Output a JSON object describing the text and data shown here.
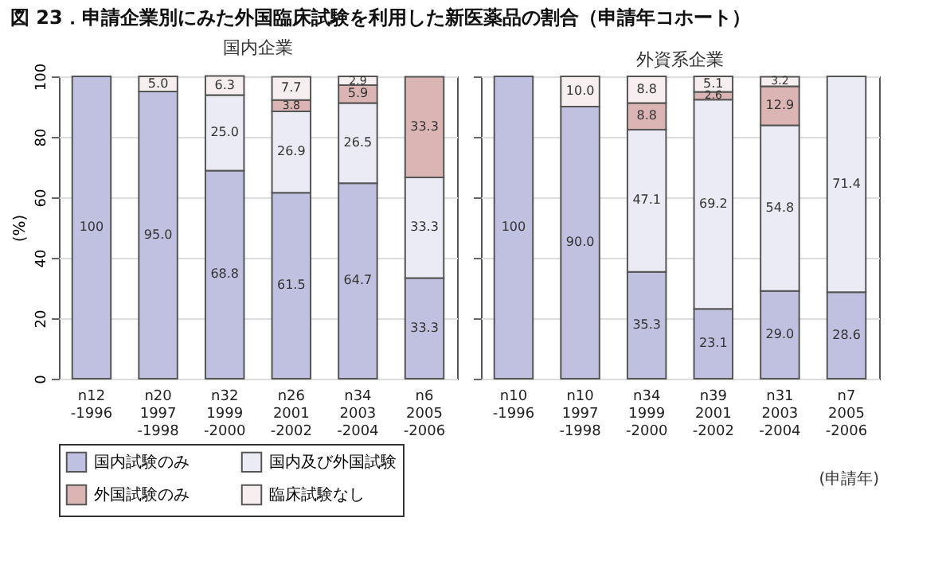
{
  "chart_data": [
    {
      "type": "bar",
      "stacked": true,
      "title": "図 23．申請企業別にみた外国臨床試験を利用した新医薬品の割合（申請年コホート）",
      "subtitle": "国内企業",
      "ylabel": "(%)",
      "categories": [
        "n12\n-1996",
        "n20\n1997\n-1998",
        "n32\n1999\n-2000",
        "n26\n2001\n-2002",
        "n34\n2003\n-2004",
        "n6\n2005\n-2006"
      ],
      "series": [
        {
          "name": "国内試験のみ",
          "color": "#c0c0e0",
          "values": [
            100,
            95.0,
            68.8,
            61.5,
            64.7,
            33.3
          ],
          "value_labels": [
            "100",
            "95.0",
            "68.8",
            "61.5",
            "64.7",
            "33.3"
          ]
        },
        {
          "name": "国内及び外国試験",
          "color": "#ebebf5",
          "values": [
            null,
            null,
            25.0,
            26.9,
            26.5,
            33.3
          ],
          "value_labels": [
            null,
            null,
            "25.0",
            "26.9",
            "26.5",
            "33.3"
          ]
        },
        {
          "name": "外国試験のみ",
          "color": "#dbb4b4",
          "values": [
            null,
            null,
            null,
            3.8,
            5.9,
            33.3
          ],
          "value_labels": [
            null,
            null,
            null,
            "3.8",
            "5.9",
            "33.3"
          ]
        },
        {
          "name": "臨床試験なし",
          "color": "#f7eeef",
          "values": [
            null,
            5.0,
            6.3,
            7.7,
            2.9,
            null
          ],
          "value_labels": [
            null,
            "5.0",
            "6.3",
            "7.7",
            "2.9",
            null
          ]
        }
      ],
      "ylim": [
        0,
        100
      ],
      "yticks": [
        0,
        20,
        40,
        60,
        80,
        100
      ],
      "grid": "y",
      "legend": "bottom"
    },
    {
      "type": "bar",
      "stacked": true,
      "subtitle": "外資系企業",
      "categories": [
        "n10\n-1996",
        "n10\n1997\n-1998",
        "n34\n1999\n-2000",
        "n39\n2001\n-2002",
        "n31\n2003\n-2004",
        "n7\n2005\n-2006"
      ],
      "series": [
        {
          "color": "#c0c0e0",
          "values": [
            100,
            90.0,
            35.3,
            23.1,
            29.0,
            28.6
          ],
          "value_labels": [
            "100",
            "90.0",
            "35.3",
            "23.1",
            "29.0",
            "28.6"
          ]
        },
        {
          "color": "#ebebf5",
          "values": [
            null,
            null,
            47.1,
            69.2,
            54.8,
            71.4
          ],
          "value_labels": [
            null,
            null,
            "47.1",
            "69.2",
            "54.8",
            "71.4"
          ]
        },
        {
          "color": "#dbb4b4",
          "values": [
            null,
            null,
            8.8,
            2.6,
            12.9,
            null
          ],
          "value_labels": [
            null,
            null,
            "8.8",
            "2.6",
            "12.9",
            null
          ]
        },
        {
          "color": "#f7eeef",
          "values": [
            null,
            10.0,
            8.8,
            5.1,
            3.2,
            null
          ],
          "value_labels": [
            null,
            "10.0",
            "8.8",
            "5.1",
            "3.2",
            null
          ]
        }
      ],
      "ylim": [
        0,
        100
      ],
      "yticks": [
        0,
        20,
        40,
        60,
        80,
        100
      ],
      "grid": "y",
      "tick_labels": "x",
      "annotations": [
        "(申請年)"
      ]
    }
  ]
}
